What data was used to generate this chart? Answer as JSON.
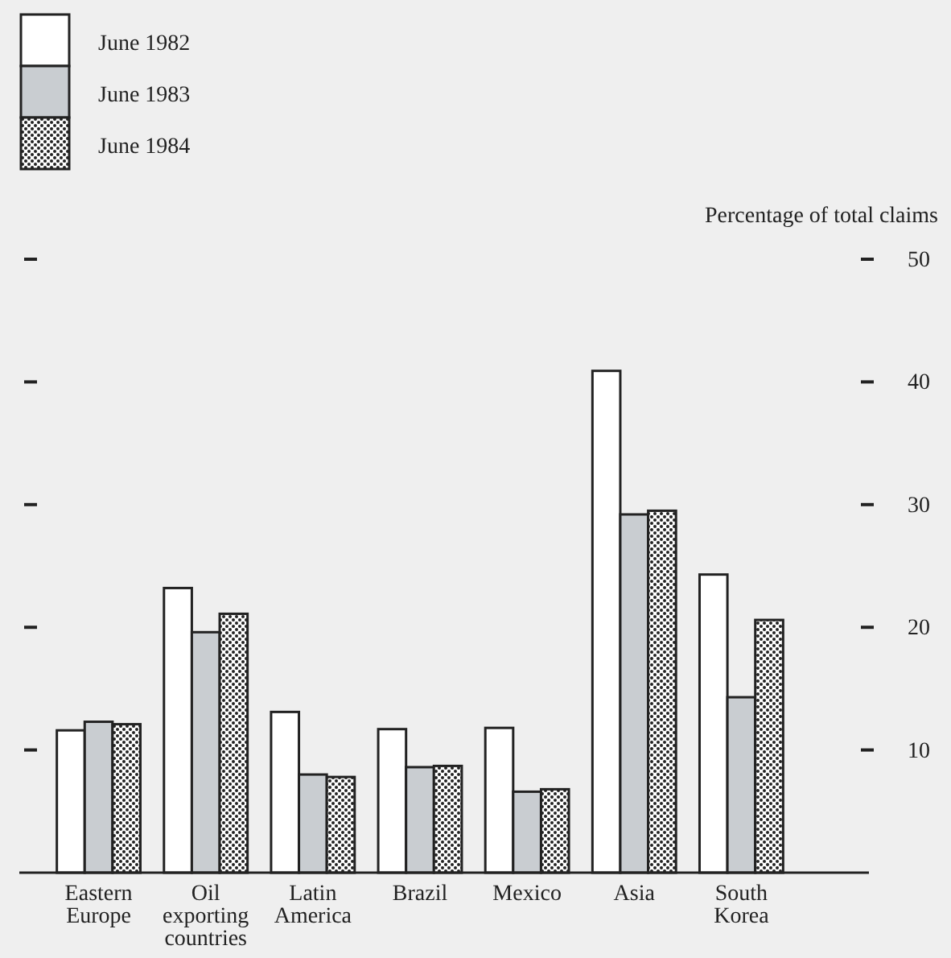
{
  "chart_data": {
    "type": "bar",
    "ylabel": "Percentage of total claims",
    "categories": [
      "Eastern Europe",
      "Oil exporting countries",
      "Latin America",
      "Brazil",
      "Mexico",
      "Asia",
      "South Korea"
    ],
    "series": [
      {
        "name": "June 1982",
        "color": "#ffffff",
        "values": [
          11.6,
          23.2,
          13.1,
          11.7,
          11.8,
          40.9,
          24.3
        ]
      },
      {
        "name": "June 1983",
        "color": "#c9cdd1",
        "values": [
          12.3,
          19.6,
          8.0,
          8.6,
          6.6,
          29.2,
          14.3
        ]
      },
      {
        "name": "June 1984",
        "color": "#222222",
        "values": [
          12.1,
          21.1,
          7.8,
          8.7,
          6.8,
          29.5,
          20.6
        ]
      }
    ],
    "ylim": [
      0,
      50
    ],
    "yticks": [
      {
        "value": 0,
        "label": null
      },
      10,
      20,
      30,
      40,
      50
    ],
    "grid": false,
    "legend": "top left"
  }
}
